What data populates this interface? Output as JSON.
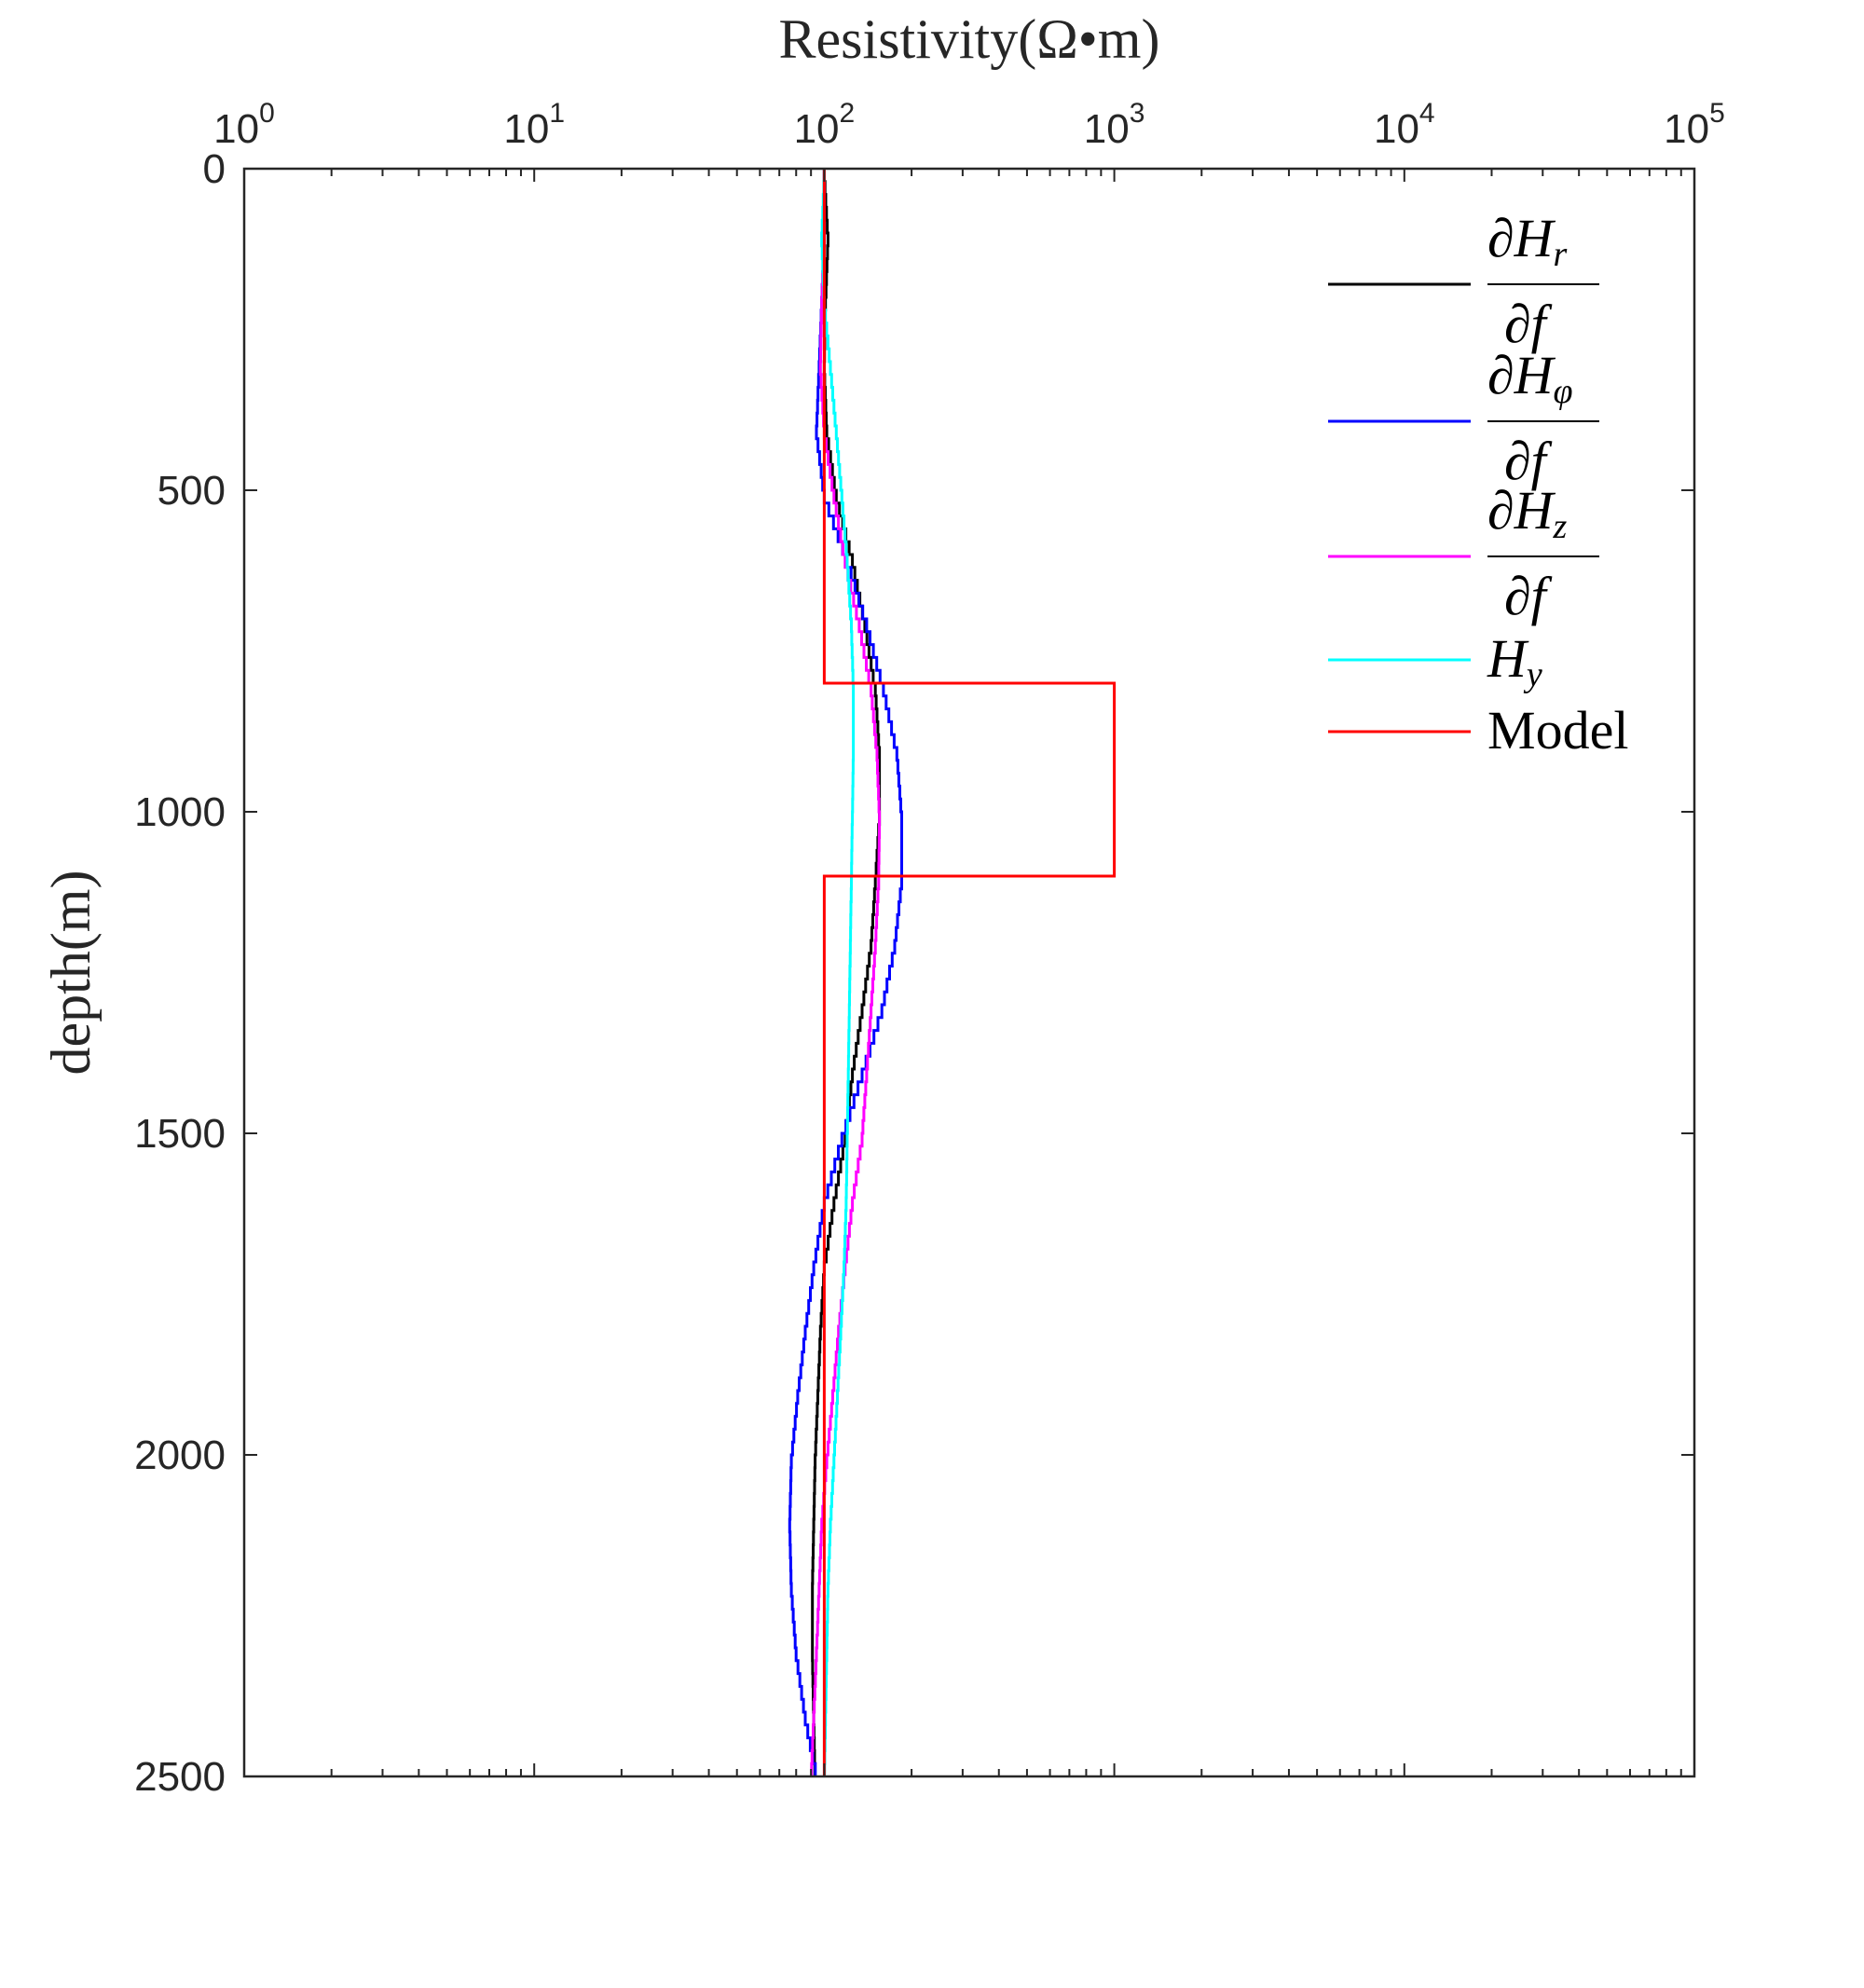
{
  "chart_data": {
    "type": "line",
    "title": "",
    "xlabel": "Resistivity(Ω•m)",
    "ylabel": "depth(m)",
    "x_scale": "log",
    "x_axis_location": "top",
    "y_direction": "reversed",
    "xlim": [
      1,
      100000
    ],
    "ylim": [
      0,
      2500
    ],
    "x_ticks": [
      {
        "value": 1,
        "base": "10",
        "exp": "0"
      },
      {
        "value": 10,
        "base": "10",
        "exp": "1"
      },
      {
        "value": 100,
        "base": "10",
        "exp": "2"
      },
      {
        "value": 1000,
        "base": "10",
        "exp": "3"
      },
      {
        "value": 10000,
        "base": "10",
        "exp": "4"
      },
      {
        "value": 100000,
        "base": "10",
        "exp": "5"
      }
    ],
    "y_ticks": [
      {
        "value": 0,
        "label": "0"
      },
      {
        "value": 500,
        "label": "500"
      },
      {
        "value": 1000,
        "label": "1000"
      },
      {
        "value": 1500,
        "label": "1500"
      },
      {
        "value": 2000,
        "label": "2000"
      },
      {
        "value": 2500,
        "label": "2500"
      }
    ],
    "grid": false,
    "legend_position": "top-right",
    "series": [
      {
        "name": "∂Hr/∂f",
        "num_symbol": "∂H",
        "num_sub": "r",
        "den": "∂f",
        "color": "#000000",
        "depth": [
          0,
          100,
          200,
          300,
          400,
          500,
          600,
          700,
          800,
          900,
          1000,
          1100,
          1200,
          1300,
          1400,
          1500,
          1600,
          1700,
          1800,
          1900,
          2000,
          2100,
          2200,
          2300,
          2400,
          2500
        ],
        "resistivity": [
          100,
          103,
          101,
          100,
          102,
          110,
          125,
          138,
          150,
          155,
          155,
          150,
          145,
          135,
          125,
          118,
          108,
          100,
          97,
          95,
          93,
          92,
          91,
          91,
          92,
          93
        ]
      },
      {
        "name": "∂Hφ/∂f",
        "num_symbol": "∂H",
        "num_sub": "φ",
        "den": "∂f",
        "color": "#0000ff",
        "depth": [
          0,
          100,
          200,
          300,
          400,
          500,
          600,
          700,
          800,
          900,
          1000,
          1100,
          1200,
          1300,
          1400,
          1500,
          1600,
          1700,
          1800,
          1900,
          2000,
          2100,
          2200,
          2300,
          2400,
          2500
        ],
        "resistivity": [
          100,
          100,
          98,
          96,
          94,
          100,
          120,
          140,
          160,
          178,
          185,
          185,
          175,
          158,
          135,
          115,
          100,
          92,
          86,
          81,
          77,
          76,
          77,
          80,
          86,
          95
        ]
      },
      {
        "name": "∂Hz/∂f",
        "num_symbol": "∂H",
        "num_sub": "z",
        "den": "∂f",
        "color": "#ff00ff",
        "depth": [
          0,
          100,
          200,
          300,
          400,
          500,
          600,
          700,
          800,
          900,
          1000,
          1100,
          1200,
          1300,
          1400,
          1500,
          1600,
          1700,
          1800,
          1900,
          2000,
          2100,
          2200,
          2300,
          2400,
          2500
        ],
        "resistivity": [
          100,
          100,
          98,
          97,
          100,
          108,
          118,
          132,
          145,
          152,
          155,
          154,
          150,
          145,
          140,
          135,
          125,
          118,
          112,
          107,
          102,
          98,
          96,
          94,
          92,
          90
        ]
      },
      {
        "name": "Hy",
        "num_symbol": "H",
        "num_sub": "y",
        "den": "",
        "color": "#00ffff",
        "depth": [
          0,
          100,
          200,
          300,
          400,
          500,
          600,
          700,
          800,
          900,
          1000,
          1100,
          1200,
          1300,
          1400,
          1500,
          1600,
          1700,
          1800,
          1900,
          2000,
          2100,
          2200,
          2300,
          2400,
          2500
        ],
        "resistivity": [
          100,
          98,
          100,
          105,
          110,
          115,
          120,
          124,
          126,
          126,
          125,
          124,
          123,
          122,
          121,
          120,
          119,
          117,
          114,
          111,
          108,
          105,
          103,
          102,
          101,
          100
        ]
      },
      {
        "name": "Model",
        "num_symbol": "Model",
        "num_sub": "",
        "den": "",
        "color": "#ff0000",
        "step": true,
        "depth": [
          0,
          800,
          800,
          1100,
          1100,
          2500
        ],
        "resistivity": [
          100,
          100,
          1000,
          1000,
          100,
          100
        ]
      }
    ]
  }
}
